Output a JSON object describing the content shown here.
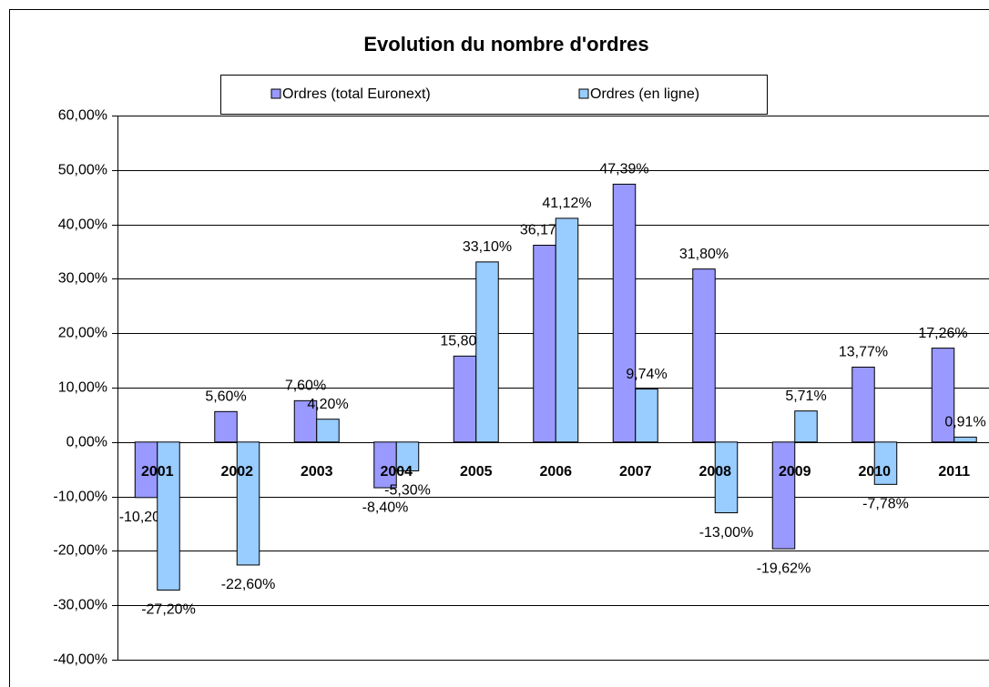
{
  "chart_data": {
    "type": "bar",
    "title": "Evolution du nombre d'ordres",
    "categories": [
      "2001",
      "2002",
      "2003",
      "2004",
      "2005",
      "2006",
      "2007",
      "2008",
      "2009",
      "2010",
      "2011"
    ],
    "series": [
      {
        "name": "Ordres (total Euronext)",
        "color": "#9999ff",
        "values": [
          -10.2,
          5.6,
          7.6,
          -8.4,
          15.8,
          36.17,
          47.39,
          31.8,
          -19.62,
          13.77,
          17.26
        ],
        "value_labels": [
          "-10,20%",
          "5,60%",
          "7,60%",
          "-8,40%",
          "15,80%",
          "36,17%",
          "47,39%",
          "31,80%",
          "-19,62%",
          "13,77%",
          "17,26%"
        ]
      },
      {
        "name": "Ordres (en ligne)",
        "color": "#99ccff",
        "values": [
          -27.2,
          -22.6,
          4.2,
          -5.3,
          33.1,
          41.12,
          9.74,
          -13.0,
          5.71,
          -7.78,
          0.91
        ],
        "value_labels": [
          "-27,20%",
          "-22,60%",
          "4,20%",
          "-5,30%",
          "33,10%",
          "41,12%",
          "9,74%",
          "-13,00%",
          "5,71%",
          "-7,78%",
          "0,91%"
        ]
      }
    ],
    "ylim": [
      -40,
      60
    ],
    "yticks": [
      {
        "value": -40,
        "label": "-40,00%"
      },
      {
        "value": -30,
        "label": "-30,00%"
      },
      {
        "value": -20,
        "label": "-20,00%"
      },
      {
        "value": -10,
        "label": "-10,00%"
      },
      {
        "value": 0,
        "label": "0,00%"
      },
      {
        "value": 10,
        "label": "10,00%"
      },
      {
        "value": 20,
        "label": "20,00%"
      },
      {
        "value": 30,
        "label": "30,00%"
      },
      {
        "value": 40,
        "label": "40,00%"
      },
      {
        "value": 50,
        "label": "50,00%"
      },
      {
        "value": 60,
        "label": "60,00%"
      }
    ],
    "grid": true,
    "legend": "top"
  }
}
